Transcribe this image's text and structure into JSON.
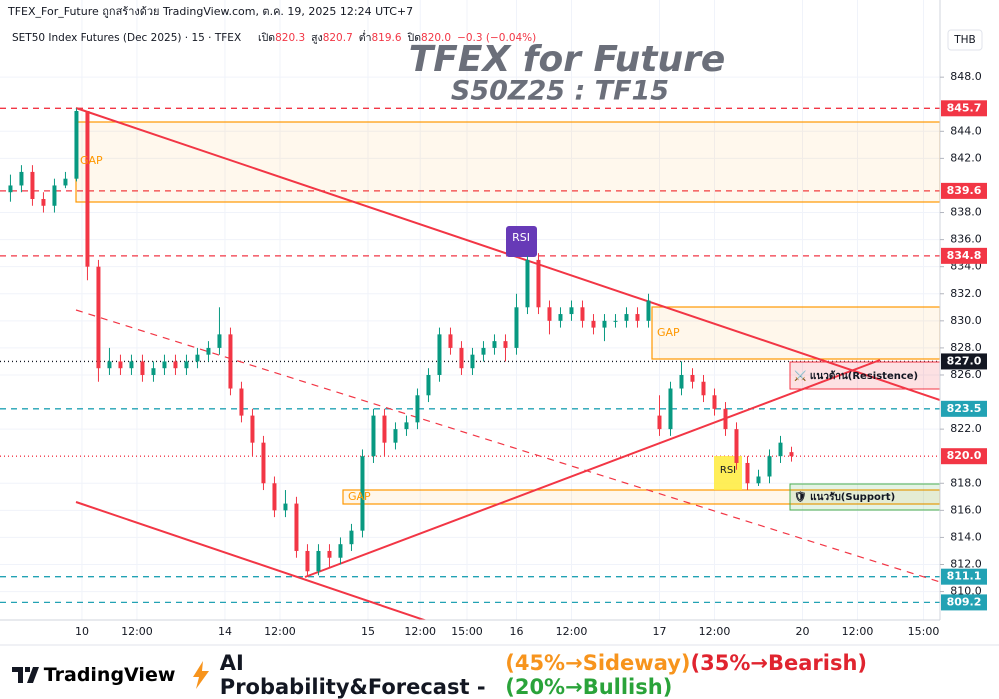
{
  "header": {
    "caption": "TFEX_For_Future ถูกสร้างด้วย TradingView.com, ต.ค. 19, 2025 12:24 UTC+7",
    "symbol": "SET50 Index Futures (Dec 2025) · 15 · TFEX",
    "ohlc": [
      {
        "name": "เปิด",
        "value": "820.3"
      },
      {
        "name": "สูง",
        "value": "820.7"
      },
      {
        "name": "ต่ำ",
        "value": "819.6"
      },
      {
        "name": "ปิด",
        "value": "820.0"
      }
    ],
    "change": "−0.3 (−0.04%)",
    "currency": "THB"
  },
  "watermark": {
    "title": "TFEX for Future",
    "subtitle": "S50Z25 : TF15"
  },
  "annotations": {
    "gap_top": "GAP",
    "gap_mid": "GAP",
    "gap_low": "GAP",
    "rsi_top": "RSI",
    "rsi_low": "RSI",
    "resistance": "⚔️ แนวต้าน(Resistence)",
    "support": "🛡 แนวรับ(Support)"
  },
  "chart_data": {
    "type": "candlestick",
    "up_color": "#089981",
    "down_color": "#f23645",
    "grid": true,
    "xlim": [
      -1.9,
      169
    ],
    "ylim": [
      807.9,
      853.7
    ],
    "xticks": [
      {
        "value": 13,
        "label": "10"
      },
      {
        "value": 23,
        "label": "12:00"
      },
      {
        "value": 39,
        "label": "14"
      },
      {
        "value": 49,
        "label": "12:00"
      },
      {
        "value": 65,
        "label": "15"
      },
      {
        "value": 74.5,
        "label": "12:00"
      },
      {
        "value": 83,
        "label": "15:00"
      },
      {
        "value": 92,
        "label": "16"
      },
      {
        "value": 102,
        "label": "12:00"
      },
      {
        "value": 118,
        "label": "17"
      },
      {
        "value": 128,
        "label": "12:00"
      },
      {
        "value": 144,
        "label": "20"
      },
      {
        "value": 154,
        "label": "12:00"
      },
      {
        "value": 166,
        "label": "15:00"
      }
    ],
    "yticks": [
      {
        "value": 848,
        "label": "848.0"
      },
      {
        "value": 844,
        "label": "844.0"
      },
      {
        "value": 842,
        "label": "842.0"
      },
      {
        "value": 838,
        "label": "838.0"
      },
      {
        "value": 836,
        "label": "836.0"
      },
      {
        "value": 834,
        "label": "834.0"
      },
      {
        "value": 832,
        "label": "832.0"
      },
      {
        "value": 830,
        "label": "830.0"
      },
      {
        "value": 828,
        "label": "828.0"
      },
      {
        "value": 826,
        "label": "826.0"
      },
      {
        "value": 822,
        "label": "822.0"
      },
      {
        "value": 818,
        "label": "818.0"
      },
      {
        "value": 816,
        "label": "816.0"
      },
      {
        "value": 814,
        "label": "814.0"
      },
      {
        "value": 812,
        "label": "812.0"
      },
      {
        "value": 810,
        "label": "810.0"
      }
    ],
    "levels": [
      {
        "value": 845.7,
        "label": "845.7",
        "color": "#f23645",
        "dash": "6 5"
      },
      {
        "value": 839.6,
        "label": "839.6",
        "color": "#f23645",
        "dash": "6 5"
      },
      {
        "value": 834.8,
        "label": "834.8",
        "color": "#f23645",
        "dash": "6 5"
      },
      {
        "value": 827,
        "label": "827.0",
        "color": "#131722",
        "dash": "1 3"
      },
      {
        "value": 823.5,
        "label": "823.5",
        "color": "#22a2b4",
        "dash": "6 5"
      },
      {
        "value": 820,
        "label": "820.0",
        "color": "#f23645",
        "dash": "1 3"
      },
      {
        "value": 811.1,
        "label": "811.1",
        "color": "#22a2b4",
        "dash": "6 5"
      },
      {
        "value": 809.2,
        "label": "809.2",
        "color": "#22a2b4",
        "dash": "6 5"
      }
    ],
    "x": [
      0,
      2,
      4,
      6,
      8,
      10,
      12,
      14,
      16,
      18,
      20,
      22,
      24,
      26,
      28,
      30,
      32,
      34,
      36,
      38,
      40,
      42,
      44,
      46,
      48,
      50,
      52,
      54,
      56,
      58,
      60,
      62,
      64,
      66,
      68,
      70,
      72,
      74,
      76,
      78,
      80,
      82,
      84,
      86,
      88,
      90,
      92,
      94,
      96,
      98,
      100,
      102,
      104,
      106,
      108,
      110,
      112,
      114,
      116,
      118,
      120,
      122,
      124,
      126,
      128,
      130,
      132,
      134,
      136,
      138,
      140,
      142
    ],
    "open": [
      839.5,
      840,
      841,
      839,
      838.5,
      840,
      840.5,
      845.5,
      834,
      826.5,
      827,
      826.5,
      827,
      826,
      826.5,
      827,
      826.5,
      827,
      827.5,
      828,
      829,
      825,
      823,
      821,
      818,
      816,
      816.5,
      813,
      811.5,
      813,
      812.5,
      813.5,
      814.5,
      820,
      823,
      821,
      822,
      822.5,
      824.5,
      826,
      829,
      828,
      826.5,
      827.5,
      828,
      828.5,
      828,
      831,
      834.5,
      831,
      830,
      830.5,
      831,
      830,
      829.5,
      830,
      830,
      830.5,
      830,
      823,
      822,
      825,
      826,
      825.5,
      824.5,
      823.5,
      822,
      819.5,
      818,
      818.5,
      820,
      820.3
    ],
    "high": [
      840.8,
      841.5,
      841.5,
      839.5,
      840.5,
      841,
      845.7,
      845.5,
      834.5,
      828,
      827.5,
      827.5,
      827.5,
      827,
      827.5,
      827.5,
      827.5,
      828,
      828.5,
      831,
      829.5,
      825.5,
      823.5,
      821.5,
      818.5,
      817.5,
      817,
      813.5,
      813.5,
      813.5,
      814,
      815,
      820.5,
      823.5,
      823.5,
      822.5,
      823,
      825,
      826.5,
      829.5,
      829.5,
      828.5,
      828,
      828.5,
      829,
      829,
      832,
      834.8,
      835,
      831.5,
      831,
      831.5,
      831.5,
      830.5,
      830.5,
      830.5,
      831,
      831,
      832,
      824.5,
      825.5,
      827,
      826.5,
      826,
      825,
      824,
      822.5,
      820,
      819,
      820.5,
      821.5,
      820.7
    ],
    "low": [
      838.8,
      839.5,
      838.5,
      838,
      838,
      839.8,
      840.3,
      833,
      825.5,
      826,
      826,
      826,
      825.5,
      825.5,
      826,
      826,
      826,
      826.5,
      827,
      827.5,
      824.5,
      822.5,
      820,
      817.5,
      815.5,
      815.5,
      812.5,
      811.1,
      811.2,
      811.8,
      812,
      813,
      814,
      819.5,
      820,
      820.5,
      821.5,
      822,
      824,
      825.5,
      827.5,
      826,
      826,
      827,
      827.5,
      827,
      827.5,
      830.5,
      830.5,
      829,
      829.5,
      830,
      829.5,
      829,
      828.5,
      829.5,
      829.5,
      829.5,
      829.5,
      821.5,
      821.5,
      824.5,
      825,
      824,
      823,
      821.5,
      819,
      817.5,
      817.8,
      818,
      819.5,
      819.6
    ],
    "close": [
      840,
      841,
      839,
      838.5,
      840,
      840.5,
      845.5,
      834,
      826.5,
      827,
      826.5,
      827,
      826,
      826.5,
      827,
      826.5,
      827,
      827.5,
      828,
      829,
      825,
      823,
      821,
      818,
      816,
      816.5,
      813,
      811.5,
      813,
      812.5,
      813.5,
      814.5,
      820,
      823,
      821,
      822,
      822.5,
      824.5,
      826,
      829,
      828,
      826.5,
      827.5,
      828,
      828.5,
      828,
      831,
      834.5,
      831,
      830,
      830.5,
      831,
      830,
      829.5,
      830,
      830,
      830.5,
      830,
      831.5,
      822,
      825,
      826,
      825.5,
      824.5,
      823.5,
      822,
      819.5,
      818,
      818.5,
      820,
      821,
      820
    ]
  },
  "footer": {
    "brand": "TradingView",
    "headline": "AI Probability&Forecast -",
    "forecasts": [
      {
        "text": "(45%→Sideway)",
        "color": "#f7941d"
      },
      {
        "text": "(35%→Bearish)",
        "color": "#e0242f"
      },
      {
        "text": "(20%→Bullish)",
        "color": "#2aa33a"
      }
    ]
  }
}
